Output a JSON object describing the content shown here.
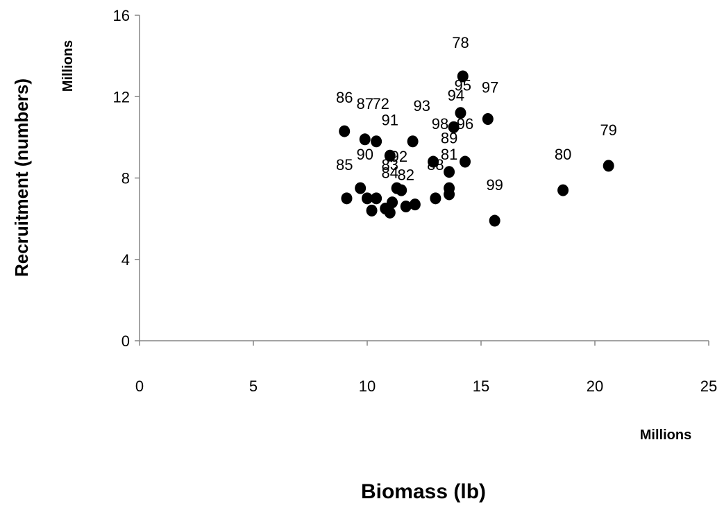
{
  "chart_data": {
    "type": "scatter",
    "title": "",
    "xlabel": "Biomass (lb)",
    "ylabel": "Recruitment (numbers)",
    "x_units": "Millions",
    "y_units": "Millions",
    "xlim": [
      0,
      25
    ],
    "ylim": [
      0,
      16
    ],
    "x_ticks": [
      0,
      5,
      10,
      15,
      20,
      25
    ],
    "y_ticks": [
      0,
      4,
      8,
      12,
      16
    ],
    "x_tick_labels": [
      "0",
      "5",
      "10",
      "15",
      "20",
      "25"
    ],
    "y_tick_labels": [
      "0",
      "4",
      "8",
      "12",
      "16"
    ],
    "grid": false,
    "legend": "none",
    "marker_color": "#000000",
    "points": [
      {
        "x": 14.2,
        "y": 13.0
      },
      {
        "x": 20.6,
        "y": 8.6
      },
      {
        "x": 18.6,
        "y": 7.4
      },
      {
        "x": 9.0,
        "y": 10.3
      },
      {
        "x": 9.9,
        "y": 9.9
      },
      {
        "x": 10.4,
        "y": 9.8
      },
      {
        "x": 11.0,
        "y": 9.1
      },
      {
        "x": 12.0,
        "y": 9.8
      },
      {
        "x": 13.8,
        "y": 10.5
      },
      {
        "x": 14.1,
        "y": 11.2
      },
      {
        "x": 15.3,
        "y": 10.9
      },
      {
        "x": 14.3,
        "y": 8.8
      },
      {
        "x": 12.9,
        "y": 8.8
      },
      {
        "x": 13.6,
        "y": 8.3
      },
      {
        "x": 15.6,
        "y": 5.9
      },
      {
        "x": 9.1,
        "y": 7.0
      },
      {
        "x": 9.7,
        "y": 7.5
      },
      {
        "x": 10.0,
        "y": 7.0
      },
      {
        "x": 10.4,
        "y": 7.0
      },
      {
        "x": 11.3,
        "y": 7.5
      },
      {
        "x": 11.5,
        "y": 7.4
      },
      {
        "x": 11.1,
        "y": 6.8
      },
      {
        "x": 10.8,
        "y": 6.5
      },
      {
        "x": 10.2,
        "y": 6.4
      },
      {
        "x": 11.0,
        "y": 6.3
      },
      {
        "x": 11.7,
        "y": 6.6
      },
      {
        "x": 12.1,
        "y": 6.7
      },
      {
        "x": 13.0,
        "y": 7.0
      },
      {
        "x": 13.6,
        "y": 7.2
      },
      {
        "x": 13.6,
        "y": 7.5
      }
    ],
    "annotations": [
      {
        "text": "78",
        "x": 14.1,
        "y": 14.4
      },
      {
        "text": "79",
        "x": 20.6,
        "y": 10.1
      },
      {
        "text": "80",
        "x": 18.6,
        "y": 8.9
      },
      {
        "text": "99",
        "x": 15.6,
        "y": 7.4
      },
      {
        "text": "86",
        "x": 9.0,
        "y": 11.7
      },
      {
        "text": "87",
        "x": 9.9,
        "y": 11.4
      },
      {
        "text": "72",
        "x": 10.6,
        "y": 11.4
      },
      {
        "text": "93",
        "x": 12.4,
        "y": 11.3
      },
      {
        "text": "91",
        "x": 11.0,
        "y": 10.6
      },
      {
        "text": "95",
        "x": 14.2,
        "y": 12.3
      },
      {
        "text": "94",
        "x": 13.9,
        "y": 11.8
      },
      {
        "text": "97",
        "x": 15.4,
        "y": 12.2
      },
      {
        "text": "98",
        "x": 13.2,
        "y": 10.4
      },
      {
        "text": "96",
        "x": 14.3,
        "y": 10.4
      },
      {
        "text": "89",
        "x": 13.6,
        "y": 9.7
      },
      {
        "text": "81",
        "x": 13.6,
        "y": 8.9
      },
      {
        "text": "88",
        "x": 13.0,
        "y": 8.4
      },
      {
        "text": "90",
        "x": 9.9,
        "y": 8.9
      },
      {
        "text": "92",
        "x": 11.4,
        "y": 8.8
      },
      {
        "text": "85",
        "x": 9.0,
        "y": 8.4
      },
      {
        "text": "83",
        "x": 11.0,
        "y": 8.4
      },
      {
        "text": "84",
        "x": 11.0,
        "y": 8.0
      },
      {
        "text": "82",
        "x": 11.7,
        "y": 7.9
      }
    ]
  }
}
